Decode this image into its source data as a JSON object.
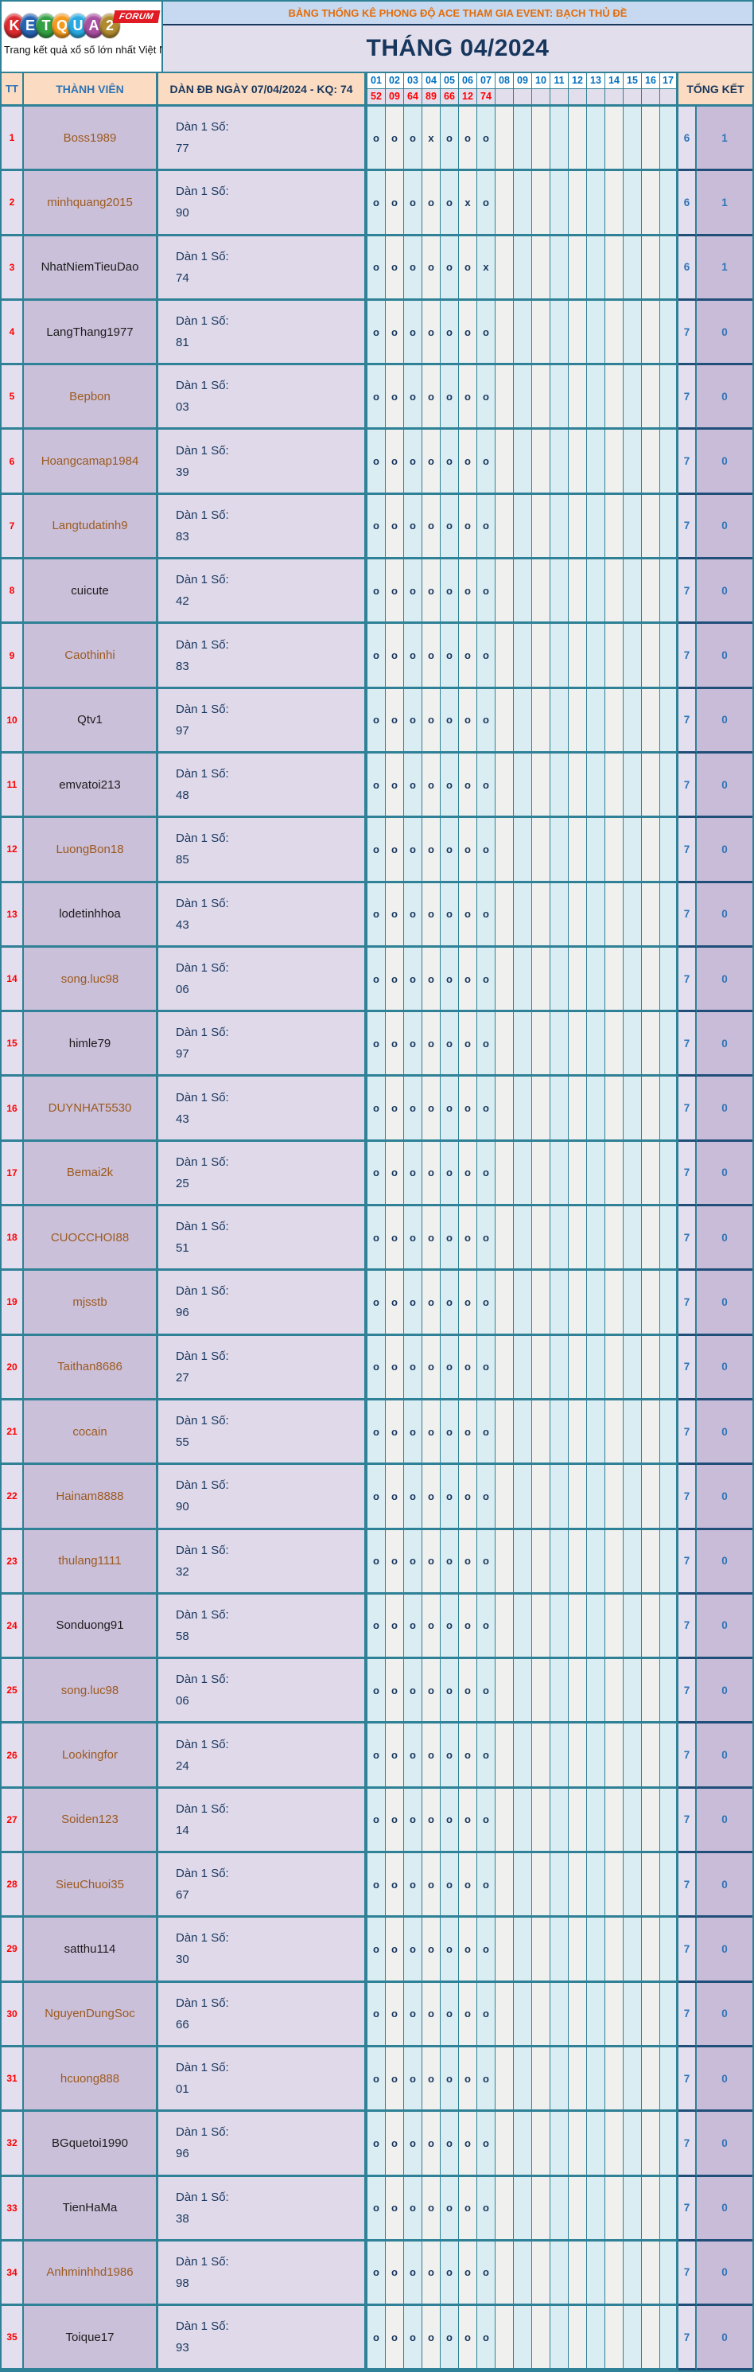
{
  "logo": {
    "letters": [
      {
        "ch": "K",
        "color": "#dd2a2e"
      },
      {
        "ch": "E",
        "color": "#2763b2"
      },
      {
        "ch": "T",
        "color": "#34a044"
      },
      {
        "ch": "Q",
        "color": "#f59a1e"
      },
      {
        "ch": "U",
        "color": "#28a9e0"
      },
      {
        "ch": "A",
        "color": "#a84fa0"
      },
      {
        "ch": "2",
        "color": "#b08a2e"
      }
    ],
    "forum_label": "FORUM",
    "tagline": "Trang kết quả xổ số lớn nhất Việt Nam"
  },
  "header": {
    "event_title": "BẢNG THỐNG KÊ PHONG ĐỘ ACE THAM GIA EVENT: BẠCH THỦ ĐỀ",
    "month_title": "THÁNG 04/2024",
    "col_tt": "TT",
    "col_member": "THÀNH VIÊN",
    "col_dan": "DÀN ĐB NGÀY 07/04/2024 - KQ: 74",
    "col_total": "TỔNG KẾT",
    "day_numbers": [
      "01",
      "02",
      "03",
      "04",
      "05",
      "06",
      "07",
      "08",
      "09",
      "10",
      "11",
      "12",
      "13",
      "14",
      "15",
      "16",
      "17"
    ],
    "day_results": [
      "52",
      "09",
      "64",
      "89",
      "66",
      "12",
      "74"
    ]
  },
  "dan_label": "Dàn 1 Số:",
  "rows": [
    {
      "tt": "1",
      "member": "Boss1989",
      "name_color": "#9c5a1f",
      "dan": "77",
      "marks": [
        "o",
        "o",
        "o",
        "x",
        "o",
        "o",
        "o"
      ],
      "tk1": "6",
      "tk2": "1"
    },
    {
      "tt": "2",
      "member": "minhquang2015",
      "name_color": "#9c5a1f",
      "dan": "90",
      "marks": [
        "o",
        "o",
        "o",
        "o",
        "o",
        "x",
        "o"
      ],
      "tk1": "6",
      "tk2": "1"
    },
    {
      "tt": "3",
      "member": "NhatNiemTieuDao",
      "name_color": "#1c1c1c",
      "dan": "74",
      "marks": [
        "o",
        "o",
        "o",
        "o",
        "o",
        "o",
        "x"
      ],
      "tk1": "6",
      "tk2": "1"
    },
    {
      "tt": "4",
      "member": "LangThang1977",
      "name_color": "#1c1c1c",
      "dan": "81",
      "marks": [
        "o",
        "o",
        "o",
        "o",
        "o",
        "o",
        "o"
      ],
      "tk1": "7",
      "tk2": "0"
    },
    {
      "tt": "5",
      "member": "Bepbon",
      "name_color": "#9c5a1f",
      "dan": "03",
      "marks": [
        "o",
        "o",
        "o",
        "o",
        "o",
        "o",
        "o"
      ],
      "tk1": "7",
      "tk2": "0"
    },
    {
      "tt": "6",
      "member": "Hoangcamap1984",
      "name_color": "#9c5a1f",
      "dan": "39",
      "marks": [
        "o",
        "o",
        "o",
        "o",
        "o",
        "o",
        "o"
      ],
      "tk1": "7",
      "tk2": "0"
    },
    {
      "tt": "7",
      "member": "Langtudatinh9",
      "name_color": "#9c5a1f",
      "dan": "83",
      "marks": [
        "o",
        "o",
        "o",
        "o",
        "o",
        "o",
        "o"
      ],
      "tk1": "7",
      "tk2": "0"
    },
    {
      "tt": "8",
      "member": "cuicute",
      "name_color": "#1c1c1c",
      "dan": "42",
      "marks": [
        "o",
        "o",
        "o",
        "o",
        "o",
        "o",
        "o"
      ],
      "tk1": "7",
      "tk2": "0"
    },
    {
      "tt": "9",
      "member": "Caothinhi",
      "name_color": "#9c5a1f",
      "dan": "83",
      "marks": [
        "o",
        "o",
        "o",
        "o",
        "o",
        "o",
        "o"
      ],
      "tk1": "7",
      "tk2": "0"
    },
    {
      "tt": "10",
      "member": "Qtv1",
      "name_color": "#1c1c1c",
      "dan": "97",
      "marks": [
        "o",
        "o",
        "o",
        "o",
        "o",
        "o",
        "o"
      ],
      "tk1": "7",
      "tk2": "0"
    },
    {
      "tt": "11",
      "member": "emvatoi213",
      "name_color": "#1c1c1c",
      "dan": "48",
      "marks": [
        "o",
        "o",
        "o",
        "o",
        "o",
        "o",
        "o"
      ],
      "tk1": "7",
      "tk2": "0"
    },
    {
      "tt": "12",
      "member": "LuongBon18",
      "name_color": "#9c5a1f",
      "dan": "85",
      "marks": [
        "o",
        "o",
        "o",
        "o",
        "o",
        "o",
        "o"
      ],
      "tk1": "7",
      "tk2": "0"
    },
    {
      "tt": "13",
      "member": "lodetinhhoa",
      "name_color": "#1c1c1c",
      "dan": "43",
      "marks": [
        "o",
        "o",
        "o",
        "o",
        "o",
        "o",
        "o"
      ],
      "tk1": "7",
      "tk2": "0"
    },
    {
      "tt": "14",
      "member": "song.luc98",
      "name_color": "#9c5a1f",
      "dan": "06",
      "marks": [
        "o",
        "o",
        "o",
        "o",
        "o",
        "o",
        "o"
      ],
      "tk1": "7",
      "tk2": "0"
    },
    {
      "tt": "15",
      "member": "himle79",
      "name_color": "#1c1c1c",
      "dan": "97",
      "marks": [
        "o",
        "o",
        "o",
        "o",
        "o",
        "o",
        "o"
      ],
      "tk1": "7",
      "tk2": "0"
    },
    {
      "tt": "16",
      "member": "DUYNHAT5530",
      "name_color": "#9c5a1f",
      "dan": "43",
      "marks": [
        "o",
        "o",
        "o",
        "o",
        "o",
        "o",
        "o"
      ],
      "tk1": "7",
      "tk2": "0"
    },
    {
      "tt": "17",
      "member": "Bemai2k",
      "name_color": "#9c5a1f",
      "dan": "25",
      "marks": [
        "o",
        "o",
        "o",
        "o",
        "o",
        "o",
        "o"
      ],
      "tk1": "7",
      "tk2": "0"
    },
    {
      "tt": "18",
      "member": "CUOCCHOI88",
      "name_color": "#9c5a1f",
      "dan": "51",
      "marks": [
        "o",
        "o",
        "o",
        "o",
        "o",
        "o",
        "o"
      ],
      "tk1": "7",
      "tk2": "0"
    },
    {
      "tt": "19",
      "member": "mjsstb",
      "name_color": "#9c5a1f",
      "dan": "96",
      "marks": [
        "o",
        "o",
        "o",
        "o",
        "o",
        "o",
        "o"
      ],
      "tk1": "7",
      "tk2": "0"
    },
    {
      "tt": "20",
      "member": "Taithan8686",
      "name_color": "#9c5a1f",
      "dan": "27",
      "marks": [
        "o",
        "o",
        "o",
        "o",
        "o",
        "o",
        "o"
      ],
      "tk1": "7",
      "tk2": "0"
    },
    {
      "tt": "21",
      "member": "cocain",
      "name_color": "#9c5a1f",
      "dan": "55",
      "marks": [
        "o",
        "o",
        "o",
        "o",
        "o",
        "o",
        "o"
      ],
      "tk1": "7",
      "tk2": "0"
    },
    {
      "tt": "22",
      "member": "Hainam8888",
      "name_color": "#9c5a1f",
      "dan": "90",
      "marks": [
        "o",
        "o",
        "o",
        "o",
        "o",
        "o",
        "o"
      ],
      "tk1": "7",
      "tk2": "0"
    },
    {
      "tt": "23",
      "member": "thulang1111",
      "name_color": "#9c5a1f",
      "dan": "32",
      "marks": [
        "o",
        "o",
        "o",
        "o",
        "o",
        "o",
        "o"
      ],
      "tk1": "7",
      "tk2": "0"
    },
    {
      "tt": "24",
      "member": "Sonduong91",
      "name_color": "#1c1c1c",
      "dan": "58",
      "marks": [
        "o",
        "o",
        "o",
        "o",
        "o",
        "o",
        "o"
      ],
      "tk1": "7",
      "tk2": "0"
    },
    {
      "tt": "25",
      "member": "song.luc98",
      "name_color": "#9c5a1f",
      "dan": "06",
      "marks": [
        "o",
        "o",
        "o",
        "o",
        "o",
        "o",
        "o"
      ],
      "tk1": "7",
      "tk2": "0"
    },
    {
      "tt": "26",
      "member": "Lookingfor",
      "name_color": "#9c5a1f",
      "dan": "24",
      "marks": [
        "o",
        "o",
        "o",
        "o",
        "o",
        "o",
        "o"
      ],
      "tk1": "7",
      "tk2": "0"
    },
    {
      "tt": "27",
      "member": "Soiden123",
      "name_color": "#9c5a1f",
      "dan": "14",
      "marks": [
        "o",
        "o",
        "o",
        "o",
        "o",
        "o",
        "o"
      ],
      "tk1": "7",
      "tk2": "0"
    },
    {
      "tt": "28",
      "member": "SieuChuoi35",
      "name_color": "#9c5a1f",
      "dan": "67",
      "marks": [
        "o",
        "o",
        "o",
        "o",
        "o",
        "o",
        "o"
      ],
      "tk1": "7",
      "tk2": "0"
    },
    {
      "tt": "29",
      "member": "satthu114",
      "name_color": "#1c1c1c",
      "dan": "30",
      "marks": [
        "o",
        "o",
        "o",
        "o",
        "o",
        "o",
        "o"
      ],
      "tk1": "7",
      "tk2": "0"
    },
    {
      "tt": "30",
      "member": "NguyenDungSoc",
      "name_color": "#9c5a1f",
      "dan": "66",
      "marks": [
        "o",
        "o",
        "o",
        "o",
        "o",
        "o",
        "o"
      ],
      "tk1": "7",
      "tk2": "0"
    },
    {
      "tt": "31",
      "member": "hcuong888",
      "name_color": "#9c5a1f",
      "dan": "01",
      "marks": [
        "o",
        "o",
        "o",
        "o",
        "o",
        "o",
        "o"
      ],
      "tk1": "7",
      "tk2": "0"
    },
    {
      "tt": "32",
      "member": "BGquetoi1990",
      "name_color": "#1c1c1c",
      "dan": "96",
      "marks": [
        "o",
        "o",
        "o",
        "o",
        "o",
        "o",
        "o"
      ],
      "tk1": "7",
      "tk2": "0"
    },
    {
      "tt": "33",
      "member": "TienHaMa",
      "name_color": "#1c1c1c",
      "dan": "38",
      "marks": [
        "o",
        "o",
        "o",
        "o",
        "o",
        "o",
        "o"
      ],
      "tk1": "7",
      "tk2": "0"
    },
    {
      "tt": "34",
      "member": "Anhminhhd1986",
      "name_color": "#9c5a1f",
      "dan": "98",
      "marks": [
        "o",
        "o",
        "o",
        "o",
        "o",
        "o",
        "o"
      ],
      "tk1": "7",
      "tk2": "0"
    },
    {
      "tt": "35",
      "member": "Toique17",
      "name_color": "#1c1c1c",
      "dan": "93",
      "marks": [
        "o",
        "o",
        "o",
        "o",
        "o",
        "o",
        "o"
      ],
      "tk1": "7",
      "tk2": "0"
    }
  ],
  "colors": {
    "border_teal": "#2e8196",
    "border_navy": "#1f4e79",
    "header_peach": "#fbdcc2",
    "event_bar_blue": "#c7d9f1",
    "event_text_orange": "#e36c09",
    "month_lavender": "#e3deec",
    "navy_text": "#17365d",
    "day_number_blue": "#0070c0",
    "result_red": "#fe0000",
    "tt_lavender": "#e4dfee",
    "member_purple": "#cbc0da",
    "dan_lavender": "#dfd9ea",
    "mark_cyan": "#d9edf3",
    "mark_white": "#f0f0ee",
    "total_blue": "#2e74b5",
    "forum_red": "#e01b24"
  }
}
